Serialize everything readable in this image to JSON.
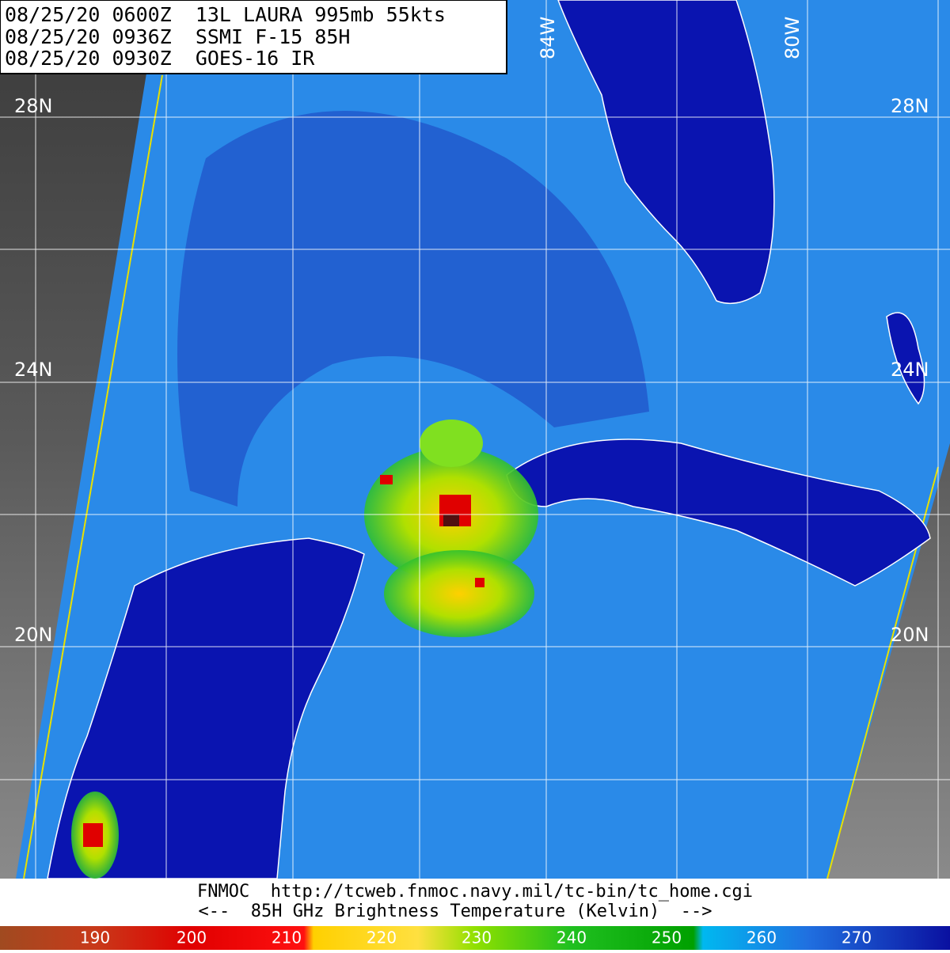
{
  "header": {
    "lines": [
      "08/25/20 0600Z  13L LAURA 995mb 55kts",
      "08/25/20 0936Z  SSMI F-15 85H",
      "08/25/20 0930Z  GOES-16 IR"
    ]
  },
  "grid_labels": {
    "latitudes": [
      "28N",
      "24N",
      "20N"
    ],
    "longitudes": [
      "84W",
      "80W"
    ]
  },
  "footer": {
    "source": "FNMOC  http://tcweb.fnmoc.navy.mil/tc-bin/tc_home.cgi",
    "caption": "<--  85H GHz Brightness Temperature (Kelvin)  -->"
  },
  "colorbar": {
    "labels": [
      "190",
      "200",
      "210",
      "220",
      "230",
      "240",
      "250",
      "260",
      "270"
    ]
  }
}
